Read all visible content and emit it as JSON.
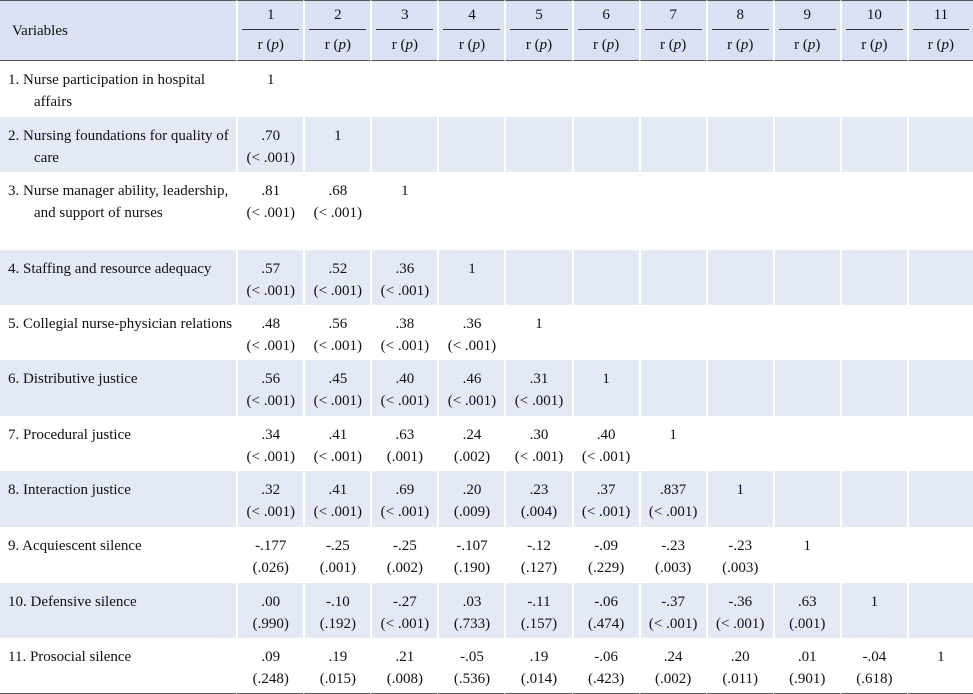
{
  "table": {
    "var_header": "Variables",
    "col_numbers": [
      "1",
      "2",
      "3",
      "4",
      "5",
      "6",
      "7",
      "8",
      "9",
      "10",
      "11"
    ],
    "sub_header_r": "r",
    "sub_header_p": "p",
    "rows": [
      {
        "label": "1. Nurse participation in hospital affairs",
        "cells": [
          {
            "r": "1",
            "p": ""
          }
        ]
      },
      {
        "label": "2. Nursing foundations for quality of care",
        "cells": [
          {
            "r": ".70",
            "p": "(< .001)"
          },
          {
            "r": "1",
            "p": ""
          }
        ]
      },
      {
        "label": "3. Nurse manager ability, leadership, and support of nurses",
        "cells": [
          {
            "r": ".81",
            "p": "(< .001)"
          },
          {
            "r": ".68",
            "p": "(< .001)"
          },
          {
            "r": "1",
            "p": ""
          }
        ]
      },
      {
        "label": "4. Staffing and resource adequacy",
        "cells": [
          {
            "r": ".57",
            "p": "(< .001)"
          },
          {
            "r": ".52",
            "p": "(< .001)"
          },
          {
            "r": ".36",
            "p": "(< .001)"
          },
          {
            "r": "1",
            "p": ""
          }
        ]
      },
      {
        "label": "5. Collegial nurse-physician relations",
        "cells": [
          {
            "r": ".48",
            "p": "(< .001)"
          },
          {
            "r": ".56",
            "p": "(< .001)"
          },
          {
            "r": ".38",
            "p": "(< .001)"
          },
          {
            "r": ".36",
            "p": "(< .001)"
          },
          {
            "r": "1",
            "p": ""
          }
        ]
      },
      {
        "label": "6. Distributive justice",
        "cells": [
          {
            "r": ".56",
            "p": "(< .001)"
          },
          {
            "r": ".45",
            "p": "(< .001)"
          },
          {
            "r": ".40",
            "p": "(< .001)"
          },
          {
            "r": ".46",
            "p": "(< .001)"
          },
          {
            "r": ".31",
            "p": "(< .001)"
          },
          {
            "r": "1",
            "p": ""
          }
        ]
      },
      {
        "label": "7. Procedural justice",
        "cells": [
          {
            "r": ".34",
            "p": "(< .001)"
          },
          {
            "r": ".41",
            "p": "(< .001)"
          },
          {
            "r": ".63",
            "p": "(.001)"
          },
          {
            "r": ".24",
            "p": "(.002)"
          },
          {
            "r": ".30",
            "p": "(< .001)"
          },
          {
            "r": ".40",
            "p": "(< .001)"
          },
          {
            "r": "1",
            "p": ""
          }
        ]
      },
      {
        "label": "8. Interaction justice",
        "cells": [
          {
            "r": ".32",
            "p": "(< .001)"
          },
          {
            "r": ".41",
            "p": "(< .001)"
          },
          {
            "r": ".69",
            "p": "(< .001)"
          },
          {
            "r": ".20",
            "p": "(.009)"
          },
          {
            "r": ".23",
            "p": "(.004)"
          },
          {
            "r": ".37",
            "p": "(< .001)"
          },
          {
            "r": ".837",
            "p": "(< .001)"
          },
          {
            "r": "1",
            "p": ""
          }
        ]
      },
      {
        "label": "9. Acquiescent silence",
        "cells": [
          {
            "r": "-.177",
            "p": "(.026)"
          },
          {
            "r": "-.25",
            "p": "(.001)"
          },
          {
            "r": "-.25",
            "p": "(.002)"
          },
          {
            "r": "-.107",
            "p": "(.190)"
          },
          {
            "r": "-.12",
            "p": "(.127)"
          },
          {
            "r": "-.09",
            "p": "(.229)"
          },
          {
            "r": "-.23",
            "p": "(.003)"
          },
          {
            "r": "-.23",
            "p": "(.003)"
          },
          {
            "r": "1",
            "p": ""
          }
        ]
      },
      {
        "label": "10. Defensive silence",
        "cells": [
          {
            "r": ".00",
            "p": "(.990)"
          },
          {
            "r": "-.10",
            "p": "(.192)"
          },
          {
            "r": "-.27",
            "p": "(< .001)"
          },
          {
            "r": ".03",
            "p": "(.733)"
          },
          {
            "r": "-.11",
            "p": "(.157)"
          },
          {
            "r": "-.06",
            "p": "(.474)"
          },
          {
            "r": "-.37",
            "p": "(< .001)"
          },
          {
            "r": "-.36",
            "p": "(< .001)"
          },
          {
            "r": ".63",
            "p": "(.001)"
          },
          {
            "r": "1",
            "p": ""
          }
        ]
      },
      {
        "label": "11. Prosocial silence",
        "cells": [
          {
            "r": ".09",
            "p": "(.248)"
          },
          {
            "r": ".19",
            "p": "(.015)"
          },
          {
            "r": ".21",
            "p": "(.008)"
          },
          {
            "r": "-.05",
            "p": "(.536)"
          },
          {
            "r": ".19",
            "p": "(.014)"
          },
          {
            "r": "-.06",
            "p": "(.423)"
          },
          {
            "r": ".24",
            "p": "(.002)"
          },
          {
            "r": ".20",
            "p": "(.011)"
          },
          {
            "r": ".01",
            "p": "(.901)"
          },
          {
            "r": "-.04",
            "p": "(.618)"
          },
          {
            "r": "1",
            "p": ""
          }
        ]
      }
    ]
  }
}
